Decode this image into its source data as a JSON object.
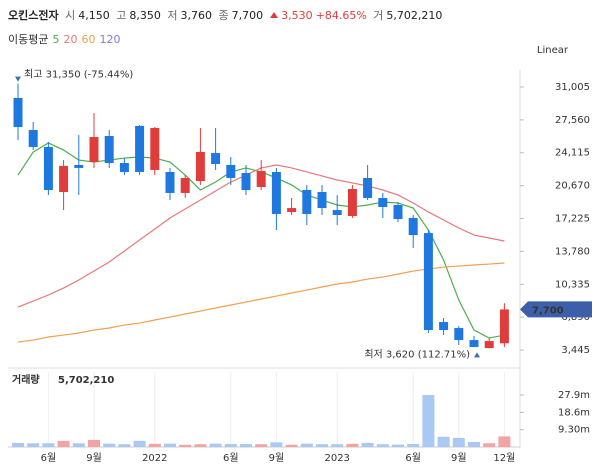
{
  "header": {
    "name": "오킨스전자",
    "open": {
      "label": "시",
      "value": "4,150"
    },
    "high": {
      "label": "고",
      "value": "8,350"
    },
    "low": {
      "label": "저",
      "value": "3,760"
    },
    "close": {
      "label": "종",
      "value": "7,700"
    },
    "change": "3,530",
    "change_pct": "+84.65%",
    "volume": {
      "label": "거",
      "value": "5,702,210"
    }
  },
  "chart_data": {
    "type": "candlestick",
    "scale_label": "Linear",
    "ma_label": "이동평균",
    "categories": [
      null,
      null,
      "6월",
      null,
      null,
      "9월",
      null,
      null,
      null,
      "2022",
      null,
      null,
      null,
      null,
      "6월",
      null,
      null,
      "9월",
      null,
      null,
      null,
      "2023",
      null,
      null,
      null,
      null,
      "6월",
      null,
      null,
      "9월",
      null,
      null,
      "12월"
    ],
    "open": [
      29850,
      26500,
      24720,
      20000,
      22830,
      23145,
      25870,
      23040,
      26920,
      22310,
      22100,
      19900,
      21150,
      24090,
      22830,
      21990,
      20525,
      22100,
      17900,
      20210,
      20000,
      18110,
      17490,
      21470,
      19370,
      18640,
      17280,
      15700,
      6380,
      5750,
      4490,
      3650,
      4150
    ],
    "high": [
      31350,
      27340,
      25240,
      23350,
      25970,
      28280,
      26500,
      23560,
      27020,
      26810,
      22520,
      21800,
      26710,
      26710,
      23670,
      22830,
      23350,
      22520,
      19370,
      20740,
      20740,
      19690,
      20740,
      22830,
      19900,
      18950,
      17590,
      16020,
      6800,
      5960,
      4910,
      4700,
      8350
    ],
    "low": [
      25450,
      24400,
      19690,
      18110,
      19690,
      22520,
      22520,
      21780,
      21780,
      21780,
      19160,
      19400,
      20740,
      22310,
      20740,
      19690,
      20210,
      16020,
      17590,
      16540,
      17590,
      16540,
      17280,
      19160,
      17280,
      16860,
      14130,
      5225,
      5015,
      3970,
      3760,
      3620,
      3760
    ],
    "close": [
      26810,
      24720,
      20210,
      22730,
      22520,
      25765,
      23040,
      22100,
      22100,
      26710,
      19900,
      21470,
      24200,
      22935,
      21470,
      20210,
      22200,
      17700,
      18320,
      17700,
      18320,
      17590,
      20315,
      19370,
      18430,
      17170,
      15490,
      5540,
      5540,
      4490,
      3760,
      4385,
      7700
    ],
    "up_color": "#e03c3c",
    "down_color": "#1e78e0",
    "ylim": [
      2400,
      32260
    ],
    "yticks": [
      {
        "value": 31005,
        "label": "31,005"
      },
      {
        "value": 27560,
        "label": "27,560"
      },
      {
        "value": 24115,
        "label": "24,115"
      },
      {
        "value": 20670,
        "label": "20,670"
      },
      {
        "value": 17225,
        "label": "17,225"
      },
      {
        "value": 13780,
        "label": "13,780"
      },
      {
        "value": 10335,
        "label": "10,335"
      },
      {
        "value": 6890,
        "label": "6,890"
      },
      {
        "value": 3445,
        "label": "3,445"
      }
    ],
    "price_tag": {
      "value": 7700,
      "label": "7,700"
    },
    "high_note": {
      "value": 31350,
      "label": "최고 31,350 (-75.44%)"
    },
    "low_note": {
      "value": 3620,
      "label": "최저 3,620 (112.71%)"
    },
    "moving_averages": [
      {
        "name": "5",
        "color": "#4cae4c",
        "values": [
          21780,
          24190,
          25140,
          24400,
          23350,
          23145,
          23350,
          23560,
          23670,
          23560,
          23145,
          21780,
          20210,
          21050,
          22100,
          22520,
          22100,
          21470,
          20740,
          19690,
          19160,
          18640,
          18430,
          18640,
          18950,
          18850,
          18320,
          16020,
          12870,
          8680,
          5540,
          4700,
          5015
        ]
      },
      {
        "name": "20",
        "color": "#e87878",
        "values": [
          7950,
          8580,
          9210,
          9940,
          10780,
          11720,
          12670,
          13820,
          14970,
          16130,
          17280,
          18220,
          19160,
          20110,
          21050,
          21780,
          22520,
          22830,
          22520,
          22100,
          21680,
          21260,
          20950,
          20630,
          20210,
          19690,
          18850,
          17910,
          17070,
          16230,
          15490,
          15180,
          14870
        ]
      },
      {
        "name": "60",
        "color": "#f0a050",
        "values": [
          4280,
          4490,
          4810,
          5015,
          5230,
          5540,
          5750,
          6060,
          6270,
          6590,
          6900,
          7220,
          7530,
          7850,
          8160,
          8470,
          8790,
          9100,
          9420,
          9730,
          10050,
          10360,
          10570,
          10880,
          11090,
          11400,
          11720,
          11930,
          12140,
          12240,
          12350,
          12450,
          12560
        ]
      },
      {
        "name": "120",
        "color": "#8a78e0",
        "values": [
          null,
          null,
          null,
          null,
          null,
          null,
          null,
          null,
          null,
          null,
          null,
          null,
          null,
          null,
          null,
          null,
          null,
          null,
          null,
          null,
          null,
          null,
          null,
          null,
          null,
          null,
          null,
          null,
          null,
          null,
          null,
          null,
          null
        ]
      }
    ],
    "volume": {
      "label": "거래량",
      "value_label": "5,702,210",
      "up_color": "#f2a3a3",
      "down_color": "#a9c9f2",
      "values": [
        2.2,
        2.0,
        2.0,
        3.3,
        2.0,
        3.8,
        1.8,
        1.5,
        3.3,
        1.7,
        1.8,
        1.2,
        1.5,
        1.8,
        1.6,
        1.6,
        1.5,
        2.5,
        1.2,
        1.8,
        1.5,
        1.5,
        1.7,
        2.2,
        1.5,
        1.3,
        1.6,
        27.9,
        5.5,
        4.9,
        2.7,
        2.0,
        5.70221
      ],
      "ylim": [
        0,
        39.4
      ],
      "yticks": [
        {
          "value": 27.9,
          "label": "27.9m"
        },
        {
          "value": 18.6,
          "label": "18.6m"
        },
        {
          "value": 9.3,
          "label": "9.30m"
        }
      ]
    }
  }
}
